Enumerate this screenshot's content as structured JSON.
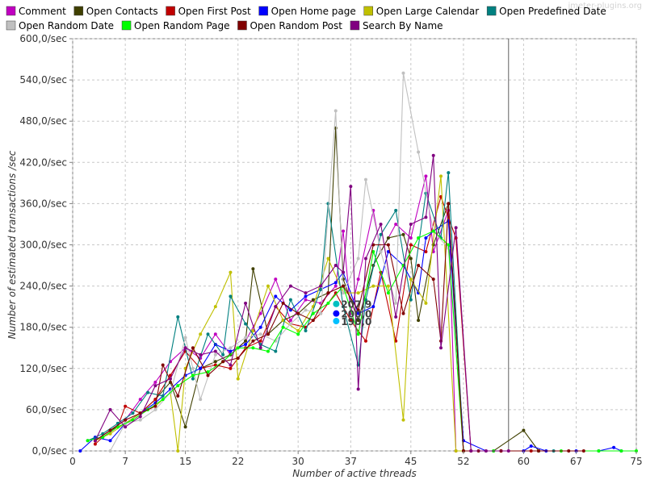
{
  "watermark": "jmeter-plugins.org",
  "chart_data": {
    "type": "line",
    "title": "",
    "xlabel": "Number of active threads",
    "ylabel": "Number of estimated transactions /sec",
    "xlim": [
      0,
      75
    ],
    "ylim": [
      0,
      600
    ],
    "xticks": [
      0,
      7,
      15,
      22,
      30,
      37,
      45,
      52,
      60,
      67,
      75
    ],
    "yticks": [
      0,
      60,
      120,
      180,
      240,
      300,
      360,
      420,
      480,
      540,
      600
    ],
    "ytick_labels": [
      "0,0/sec",
      "60,0/sec",
      "120,0/sec",
      "180,0/sec",
      "240,0/sec",
      "300,0/sec",
      "360,0/sec",
      "420,0/sec",
      "480,0/sec",
      "540,0/sec",
      "600,0/sec"
    ],
    "grid": true,
    "legend": "top",
    "reference_line_x": 58,
    "series": [
      {
        "name": "Comment",
        "color": "#c000c0",
        "x": [
          3,
          5,
          7,
          9,
          11,
          13,
          15,
          17,
          19,
          21,
          23,
          25,
          27,
          29,
          31,
          33,
          35,
          36,
          37,
          38,
          40,
          41,
          43,
          45,
          47,
          48,
          50,
          51,
          53,
          57
        ],
        "y": [
          15,
          30,
          45,
          75,
          100,
          130,
          150,
          135,
          170,
          140,
          160,
          200,
          250,
          190,
          220,
          215,
          240,
          320,
          200,
          250,
          350,
          290,
          330,
          310,
          400,
          290,
          350,
          0,
          0,
          0
        ]
      },
      {
        "name": "Open Contacts",
        "color": "#404000",
        "x": [
          3,
          5,
          7,
          9,
          11,
          13,
          15,
          17,
          19,
          21,
          23,
          24,
          26,
          28,
          30,
          32,
          34,
          35,
          36,
          38,
          40,
          42,
          44,
          45,
          46,
          48,
          50,
          52,
          56,
          60,
          62
        ],
        "y": [
          15,
          30,
          40,
          55,
          75,
          100,
          35,
          120,
          130,
          140,
          160,
          265,
          170,
          190,
          200,
          220,
          230,
          470,
          250,
          190,
          270,
          310,
          315,
          280,
          190,
          300,
          360,
          0,
          0,
          30,
          0
        ]
      },
      {
        "name": "Open First Post",
        "color": "#c00000",
        "x": [
          3,
          4,
          6,
          7,
          9,
          11,
          13,
          15,
          17,
          19,
          21,
          23,
          25,
          27,
          29,
          31,
          33,
          35,
          37,
          39,
          41,
          43,
          45,
          47,
          49,
          51,
          53,
          57,
          61
        ],
        "y": [
          10,
          20,
          35,
          65,
          55,
          75,
          110,
          145,
          120,
          125,
          120,
          150,
          160,
          210,
          185,
          180,
          200,
          230,
          190,
          160,
          260,
          160,
          300,
          290,
          370,
          310,
          0,
          0,
          0
        ]
      },
      {
        "name": "Open Home page",
        "color": "#0000ff",
        "x": [
          1,
          3,
          5,
          7,
          9,
          11,
          13,
          15,
          17,
          19,
          21,
          23,
          25,
          27,
          29,
          31,
          33,
          35,
          36,
          38,
          40,
          42,
          44,
          46,
          47,
          48,
          50,
          52,
          55,
          60,
          61,
          63,
          67,
          70,
          72,
          73
        ],
        "y": [
          0,
          20,
          15,
          40,
          55,
          70,
          90,
          110,
          120,
          155,
          145,
          155,
          180,
          225,
          205,
          225,
          235,
          245,
          260,
          200,
          210,
          290,
          270,
          230,
          310,
          320,
          335,
          15,
          0,
          0,
          7,
          0,
          0,
          0,
          5,
          0
        ]
      },
      {
        "name": "Open Large Calendar",
        "color": "#c0c000",
        "x": [
          3,
          5,
          7,
          9,
          11,
          13,
          14,
          15,
          17,
          19,
          21,
          22,
          24,
          26,
          28,
          30,
          32,
          34,
          36,
          38,
          40,
          42,
          44,
          45,
          47,
          49,
          51,
          53,
          55
        ],
        "y": [
          15,
          25,
          40,
          55,
          65,
          85,
          0,
          120,
          170,
          210,
          260,
          105,
          175,
          240,
          190,
          175,
          210,
          280,
          230,
          230,
          240,
          240,
          45,
          250,
          215,
          400,
          0,
          0,
          0
        ]
      },
      {
        "name": "Open Predefined Date",
        "color": "#008080",
        "x": [
          2,
          4,
          6,
          8,
          10,
          12,
          14,
          16,
          18,
          20,
          21,
          23,
          25,
          27,
          29,
          31,
          33,
          34,
          36,
          38,
          39,
          41,
          43,
          45,
          47,
          49,
          50,
          52,
          62,
          64
        ],
        "y": [
          15,
          25,
          40,
          55,
          85,
          80,
          195,
          105,
          170,
          140,
          225,
          185,
          155,
          145,
          220,
          175,
          235,
          360,
          210,
          125,
          220,
          315,
          350,
          220,
          375,
          310,
          405,
          0,
          0,
          0
        ]
      },
      {
        "name": "Open Random Date",
        "color": "#c0c0c0",
        "x": [
          5,
          7,
          9,
          11,
          13,
          15,
          16,
          17,
          19,
          21,
          23,
          25,
          27,
          29,
          31,
          33,
          35,
          36,
          38,
          39,
          41,
          43,
          44,
          46,
          48,
          50,
          52,
          55
        ],
        "y": [
          0,
          40,
          45,
          60,
          85,
          165,
          120,
          75,
          140,
          150,
          165,
          170,
          160,
          185,
          205,
          200,
          495,
          230,
          280,
          395,
          290,
          215,
          550,
          435,
          320,
          295,
          0,
          0
        ]
      },
      {
        "name": "Open Random Page",
        "color": "#00ff00",
        "x": [
          2,
          4,
          6,
          8,
          10,
          12,
          14,
          16,
          18,
          20,
          22,
          24,
          26,
          28,
          30,
          32,
          34,
          36,
          38,
          40,
          42,
          44,
          46,
          48,
          50,
          52,
          56,
          62,
          65,
          70,
          73,
          75
        ],
        "y": [
          15,
          20,
          35,
          45,
          60,
          75,
          95,
          110,
          115,
          130,
          150,
          150,
          145,
          180,
          170,
          200,
          215,
          240,
          170,
          290,
          230,
          270,
          310,
          320,
          300,
          0,
          0,
          0,
          0,
          0,
          0,
          0
        ]
      },
      {
        "name": "Open Random Post",
        "color": "#800000",
        "x": [
          3,
          5,
          7,
          9,
          11,
          12,
          14,
          16,
          18,
          20,
          22,
          24,
          26,
          28,
          30,
          32,
          34,
          36,
          38,
          40,
          42,
          44,
          46,
          48,
          49,
          50,
          52,
          54,
          57,
          62,
          66,
          68
        ],
        "y": [
          15,
          30,
          45,
          55,
          65,
          125,
          80,
          150,
          110,
          130,
          135,
          160,
          170,
          215,
          200,
          190,
          230,
          240,
          205,
          300,
          300,
          200,
          270,
          250,
          160,
          360,
          0,
          0,
          0,
          0,
          0,
          0
        ]
      },
      {
        "name": "Search By Name",
        "color": "#800080",
        "x": [
          3,
          5,
          7,
          9,
          11,
          13,
          15,
          17,
          19,
          21,
          23,
          25,
          27,
          29,
          31,
          33,
          35,
          36,
          37,
          38,
          39,
          41,
          43,
          45,
          47,
          48,
          49,
          51,
          53,
          55,
          58
        ],
        "y": [
          15,
          60,
          35,
          50,
          95,
          105,
          150,
          140,
          145,
          125,
          215,
          150,
          210,
          240,
          230,
          240,
          270,
          260,
          385,
          90,
          280,
          330,
          195,
          330,
          340,
          430,
          150,
          325,
          0,
          0,
          0
        ]
      }
    ],
    "cluster_labels": [
      {
        "x": 35.5,
        "y": 214,
        "text": "207,9"
      },
      {
        "x": 35.5,
        "y": 200,
        "text": "200,0"
      },
      {
        "x": 35.5,
        "y": 189,
        "text": "190,0"
      }
    ]
  }
}
